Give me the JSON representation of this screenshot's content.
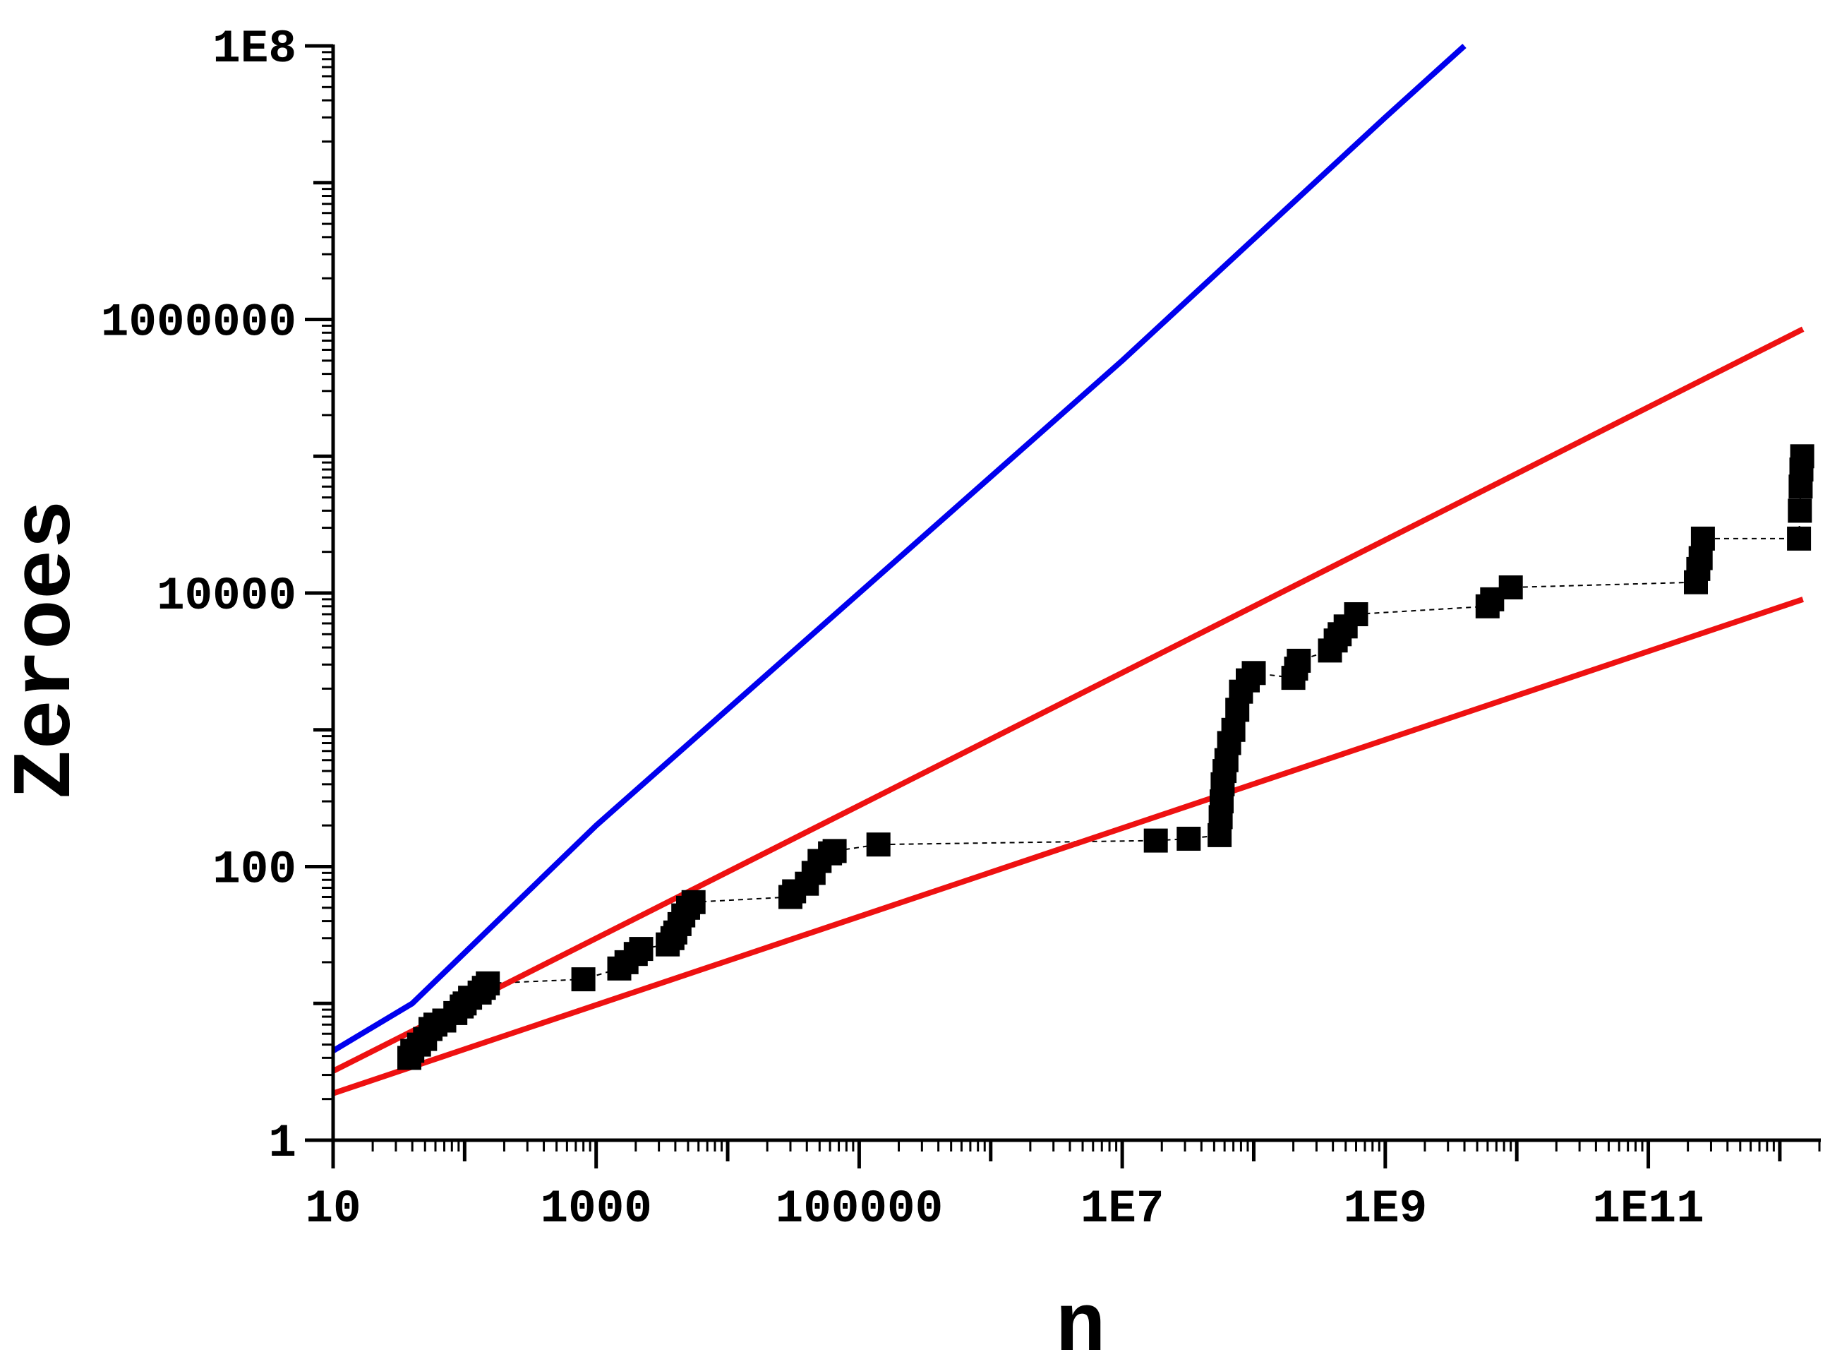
{
  "chart_data": {
    "type": "scatter",
    "title": "",
    "xlabel": "n",
    "ylabel": "Zeroes",
    "xscale": "log",
    "yscale": "log",
    "xlim": [
      10,
      2000000000000
    ],
    "ylim": [
      1,
      100000000
    ],
    "x_tick_values": [
      10,
      1000,
      100000,
      10000000,
      1000000000,
      100000000000
    ],
    "x_tick_labels": [
      "10",
      "1000",
      "100000",
      "1E7",
      "1E9",
      "1E11"
    ],
    "y_tick_values": [
      1,
      100,
      10000,
      1000000,
      100000000
    ],
    "y_tick_labels": [
      "1",
      "100",
      "10000",
      "1000000",
      "1E8"
    ],
    "grid": false,
    "colors": {
      "axis": "#000000",
      "data_markers": "#000000",
      "connector": "#000000",
      "blue_curve": "#0000ee",
      "red_lines": "#ee1111"
    },
    "series": [
      {
        "type": "scatter",
        "marker": "square",
        "connector": "dashed",
        "color": "#000000",
        "points": [
          [
            38,
            4
          ],
          [
            40,
            4.5
          ],
          [
            45,
            5
          ],
          [
            50,
            5.5
          ],
          [
            55,
            6.5
          ],
          [
            60,
            7
          ],
          [
            70,
            7.5
          ],
          [
            85,
            8.5
          ],
          [
            95,
            9.5
          ],
          [
            100,
            10
          ],
          [
            110,
            11
          ],
          [
            130,
            12
          ],
          [
            140,
            13
          ],
          [
            150,
            14
          ],
          [
            800,
            15
          ],
          [
            1500,
            18
          ],
          [
            1700,
            20
          ],
          [
            2000,
            23
          ],
          [
            2200,
            25
          ],
          [
            3500,
            27
          ],
          [
            3800,
            30
          ],
          [
            4000,
            33
          ],
          [
            4300,
            38
          ],
          [
            4600,
            44
          ],
          [
            5000,
            50
          ],
          [
            5500,
            55
          ],
          [
            30000,
            60
          ],
          [
            32000,
            66
          ],
          [
            40000,
            75
          ],
          [
            45000,
            90
          ],
          [
            50000,
            110
          ],
          [
            60000,
            125
          ],
          [
            65000,
            130
          ],
          [
            140000,
            145
          ],
          [
            18000000,
            155
          ],
          [
            32000000,
            160
          ],
          [
            55000000,
            170
          ],
          [
            56000000,
            230
          ],
          [
            57000000,
            300
          ],
          [
            58000000,
            400
          ],
          [
            60000000,
            500
          ],
          [
            62000000,
            600
          ],
          [
            65000000,
            800
          ],
          [
            70000000,
            1000
          ],
          [
            75000000,
            1400
          ],
          [
            80000000,
            1900
          ],
          [
            90000000,
            2300
          ],
          [
            100000000,
            2600
          ],
          [
            200000000,
            2400
          ],
          [
            210000000,
            2800
          ],
          [
            220000000,
            3200
          ],
          [
            380000000,
            3800
          ],
          [
            420000000,
            4500
          ],
          [
            450000000,
            5000
          ],
          [
            500000000,
            5700
          ],
          [
            600000000,
            7000
          ],
          [
            6000000000,
            8000
          ],
          [
            6500000000,
            9000
          ],
          [
            9000000000,
            11000
          ],
          [
            230000000000,
            12000
          ],
          [
            240000000000,
            15000
          ],
          [
            250000000000,
            18000
          ],
          [
            260000000000,
            25000
          ],
          [
            1400000000000,
            25000
          ],
          [
            1420000000000,
            40000
          ],
          [
            1440000000000,
            60000
          ],
          [
            1460000000000,
            80000
          ],
          [
            1480000000000,
            100000
          ]
        ]
      },
      {
        "type": "line",
        "color": "#0000ee",
        "points": [
          [
            10,
            4.5
          ],
          [
            40,
            10
          ],
          [
            1000,
            200
          ],
          [
            100000,
            10000
          ],
          [
            10000000,
            500000
          ],
          [
            1000000000,
            30000000
          ],
          [
            4000000000,
            100000000
          ]
        ]
      },
      {
        "type": "line",
        "color": "#ee1111",
        "points": [
          [
            10,
            3.2
          ],
          [
            1500000000000,
            850000
          ]
        ]
      },
      {
        "type": "line",
        "color": "#ee1111",
        "points": [
          [
            10,
            2.2
          ],
          [
            1500000000000,
            9000
          ]
        ]
      }
    ]
  }
}
